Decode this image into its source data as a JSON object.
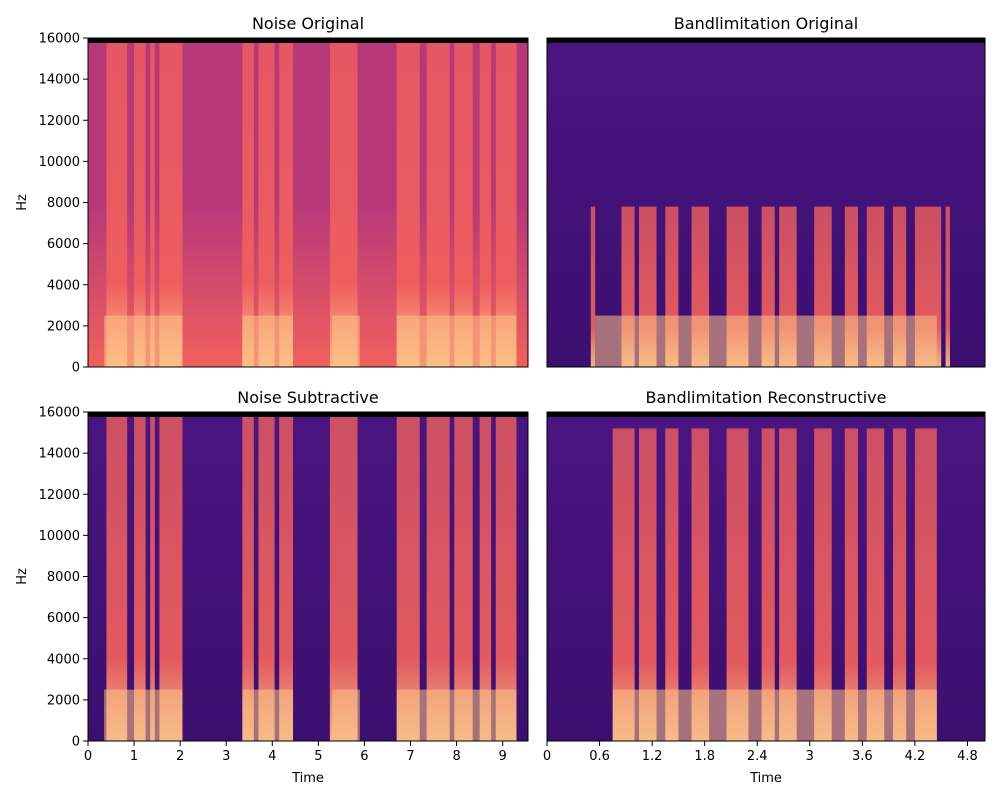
{
  "colors": {
    "background_bottom": "#3b0f70",
    "background_top": "#4a1580",
    "mid_energy": "#b73779",
    "high_energy": "#f1605d",
    "peak_energy": "#fec287",
    "edge_dark": "#000004"
  },
  "chart_data": [
    {
      "type": "heatmap",
      "title": "Noise Original",
      "ylabel": "Hz",
      "xlabel": "",
      "xlim": [
        0,
        9.55
      ],
      "ylim": [
        0,
        16000
      ],
      "yticks": [
        0,
        2000,
        4000,
        6000,
        8000,
        10000,
        12000,
        14000,
        16000
      ],
      "xticks": [],
      "noise_floor": "high",
      "bandlimit_hz": 16000,
      "active_segments": [
        [
          0.4,
          0.85
        ],
        [
          1.0,
          1.25
        ],
        [
          1.35,
          1.45
        ],
        [
          1.55,
          2.05
        ],
        [
          3.35,
          3.6
        ],
        [
          3.7,
          4.05
        ],
        [
          4.15,
          4.45
        ],
        [
          5.25,
          5.85
        ],
        [
          6.7,
          7.2
        ],
        [
          7.35,
          7.85
        ],
        [
          7.95,
          8.35
        ],
        [
          8.5,
          8.75
        ],
        [
          8.85,
          9.3
        ]
      ],
      "harmonic_segments": [
        [
          0.35,
          2.05
        ],
        [
          3.35,
          4.45
        ],
        [
          5.3,
          5.9
        ],
        [
          6.7,
          9.3
        ]
      ]
    },
    {
      "type": "heatmap",
      "title": "Bandlimitation Original",
      "ylabel": "",
      "xlabel": "",
      "xlim": [
        0,
        5.0
      ],
      "ylim": [
        0,
        16000
      ],
      "yticks": [],
      "xticks": [],
      "noise_floor": "low",
      "bandlimit_hz": 7800,
      "active_segments": [
        [
          0.5,
          0.55
        ],
        [
          0.85,
          1.0
        ],
        [
          1.05,
          1.25
        ],
        [
          1.35,
          1.5
        ],
        [
          1.65,
          1.85
        ],
        [
          2.05,
          2.3
        ],
        [
          2.45,
          2.6
        ],
        [
          2.65,
          2.85
        ],
        [
          3.05,
          3.25
        ],
        [
          3.4,
          3.55
        ],
        [
          3.65,
          3.85
        ],
        [
          3.95,
          4.1
        ],
        [
          4.2,
          4.5
        ],
        [
          4.55,
          4.6
        ]
      ],
      "harmonic_segments": [
        [
          0.55,
          4.45
        ]
      ]
    },
    {
      "type": "heatmap",
      "title": "Noise Subtractive",
      "ylabel": "Hz",
      "xlabel": "Time",
      "xlim": [
        0,
        9.55
      ],
      "ylim": [
        0,
        16000
      ],
      "yticks": [
        0,
        2000,
        4000,
        6000,
        8000,
        10000,
        12000,
        14000,
        16000
      ],
      "xticks": [
        0,
        1,
        2,
        3,
        4,
        5,
        6,
        7,
        8,
        9
      ],
      "noise_floor": "low",
      "bandlimit_hz": 16000,
      "active_segments": [
        [
          0.4,
          0.85
        ],
        [
          1.0,
          1.25
        ],
        [
          1.35,
          1.45
        ],
        [
          1.55,
          2.05
        ],
        [
          3.35,
          3.6
        ],
        [
          3.7,
          4.05
        ],
        [
          4.15,
          4.45
        ],
        [
          5.25,
          5.85
        ],
        [
          6.7,
          7.2
        ],
        [
          7.35,
          7.85
        ],
        [
          7.95,
          8.35
        ],
        [
          8.5,
          8.75
        ],
        [
          8.85,
          9.3
        ]
      ],
      "harmonic_segments": [
        [
          0.35,
          2.05
        ],
        [
          3.35,
          4.45
        ],
        [
          5.3,
          5.9
        ],
        [
          6.7,
          9.3
        ]
      ]
    },
    {
      "type": "heatmap",
      "title": "Bandlimitation Reconstructive",
      "ylabel": "",
      "xlabel": "Time",
      "xlim": [
        0,
        5.0
      ],
      "ylim": [
        0,
        16000
      ],
      "yticks": [],
      "xticks": [
        0,
        0.6,
        1.2,
        1.8,
        2.4,
        3,
        3.6,
        4.2,
        4.8
      ],
      "noise_floor": "low",
      "bandlimit_hz": 15200,
      "active_segments": [
        [
          0.75,
          1.0
        ],
        [
          1.05,
          1.25
        ],
        [
          1.35,
          1.5
        ],
        [
          1.65,
          1.85
        ],
        [
          2.05,
          2.3
        ],
        [
          2.45,
          2.6
        ],
        [
          2.65,
          2.85
        ],
        [
          3.05,
          3.25
        ],
        [
          3.4,
          3.55
        ],
        [
          3.65,
          3.85
        ],
        [
          3.95,
          4.1
        ],
        [
          4.2,
          4.45
        ]
      ],
      "harmonic_segments": [
        [
          0.75,
          4.45
        ]
      ]
    }
  ]
}
